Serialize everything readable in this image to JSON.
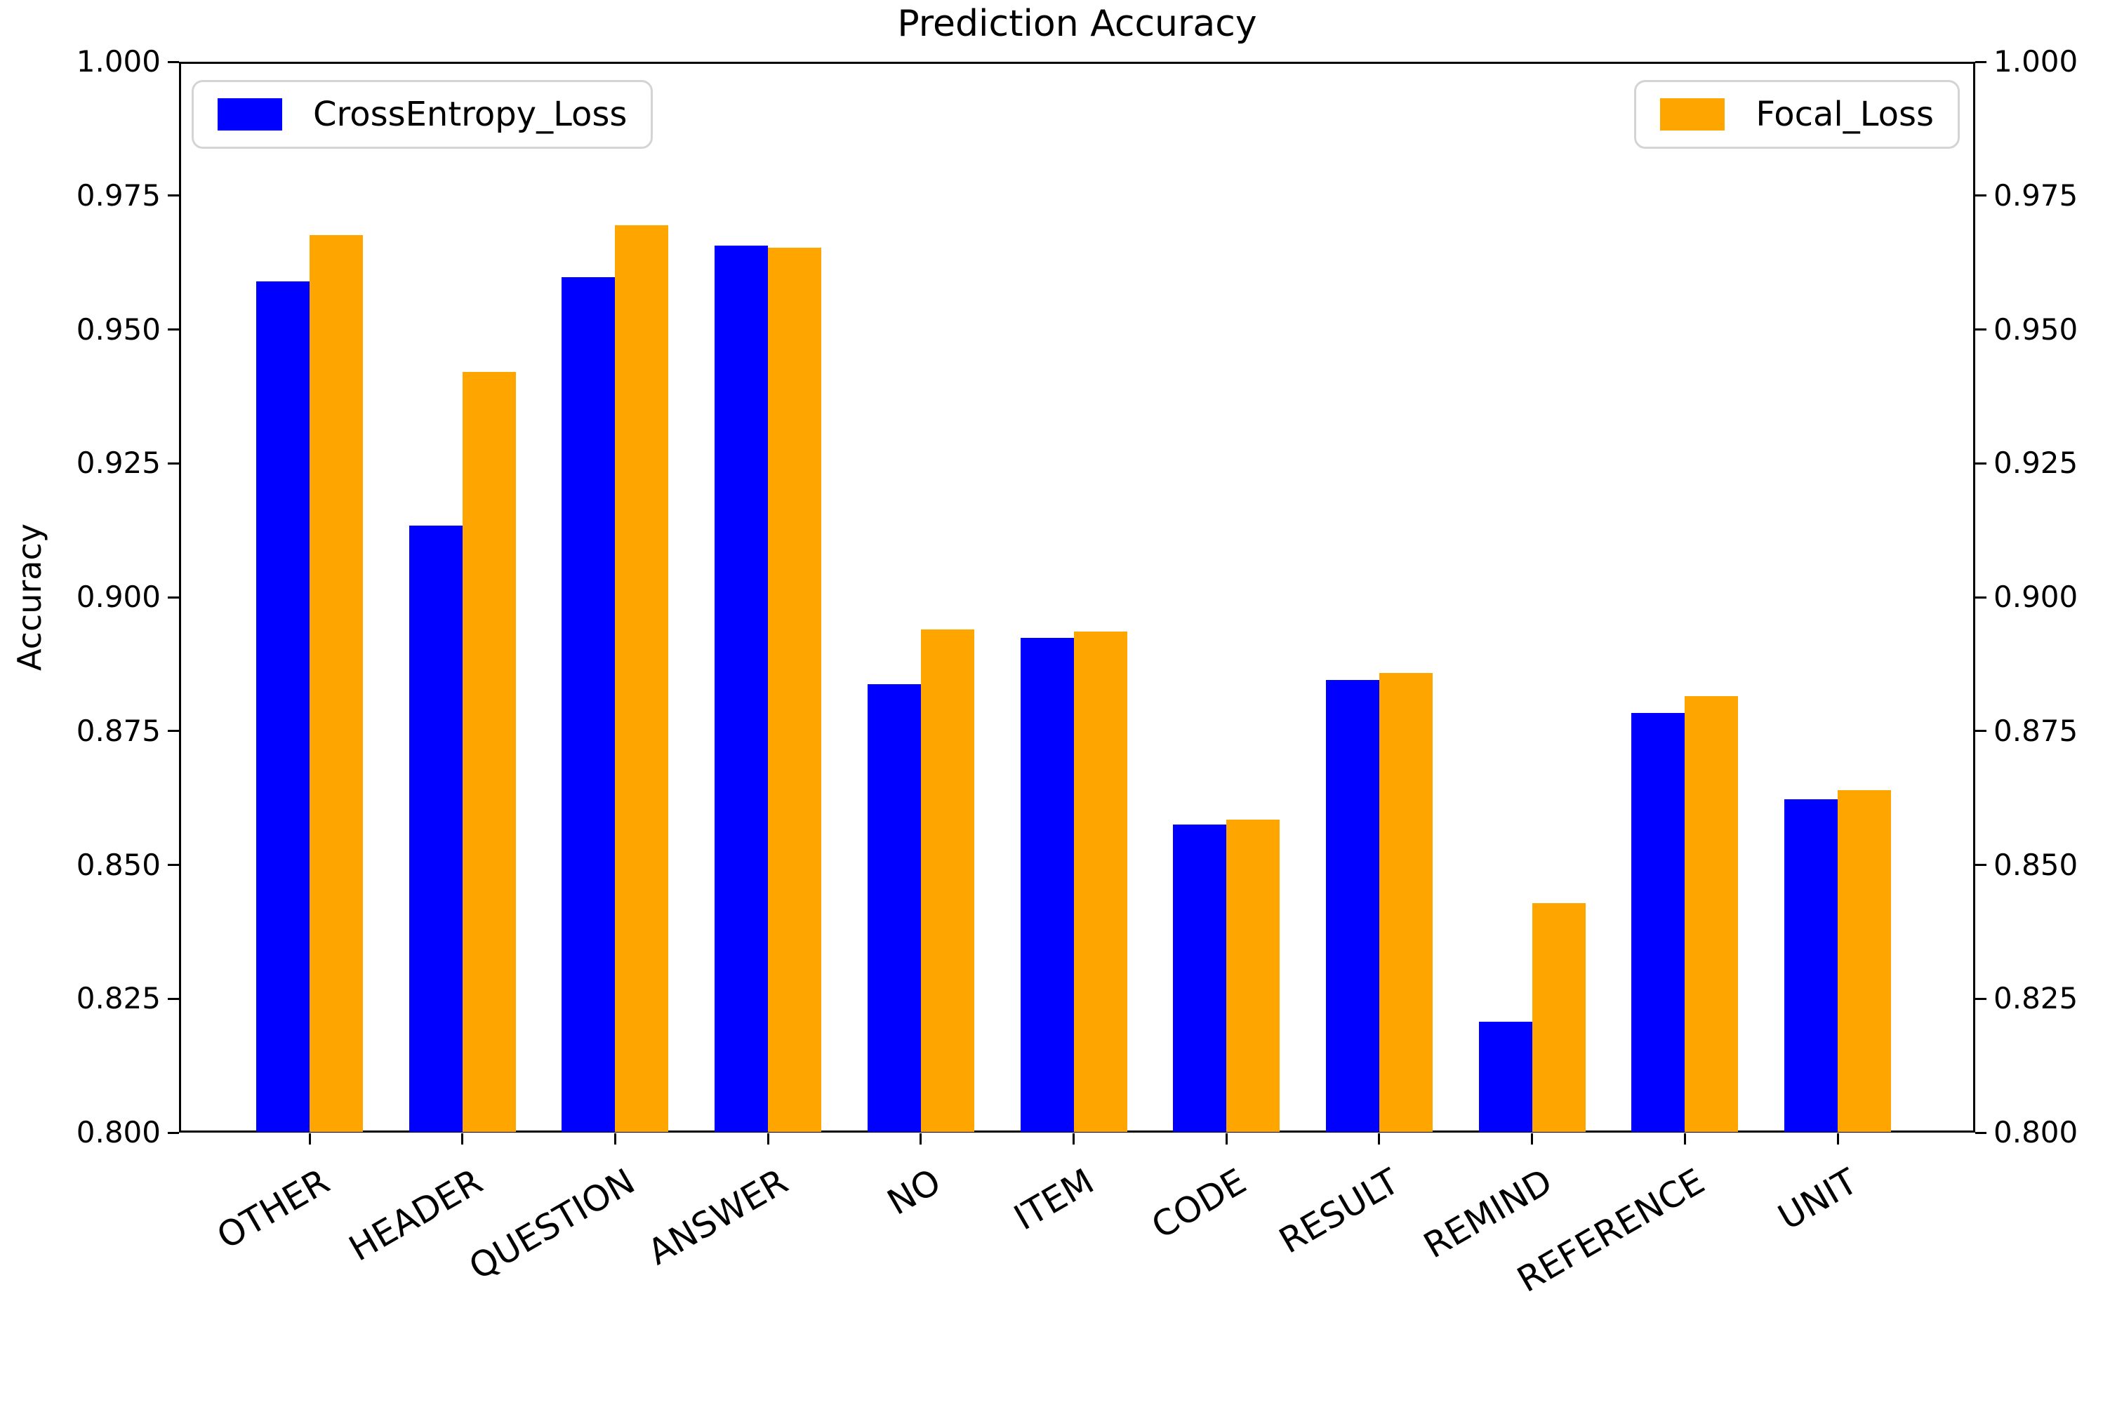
{
  "chart_data": {
    "type": "bar",
    "title": "Prediction Accuracy",
    "xlabel": "",
    "ylabel": "Accuracy",
    "categories": [
      "OTHER",
      "HEADER",
      "QUESTION",
      "ANSWER",
      "NO",
      "ITEM",
      "CODE",
      "RESULT",
      "REMIND",
      "REFERENCE",
      "UNIT"
    ],
    "series": [
      {
        "name": "CrossEntropy_Loss",
        "color": "#0000ff",
        "values": [
          0.959,
          0.9134,
          0.9597,
          0.9656,
          0.8838,
          0.8924,
          0.8576,
          0.8845,
          0.8207,
          0.8784,
          0.8622
        ]
      },
      {
        "name": "Focal_Loss",
        "color": "#ffa500",
        "values": [
          0.9676,
          0.9421,
          0.9694,
          0.9653,
          0.894,
          0.8936,
          0.8584,
          0.8858,
          0.8428,
          0.8815,
          0.864
        ]
      }
    ],
    "ylim": [
      0.8,
      1.0
    ],
    "yticks": [
      0.8,
      0.825,
      0.85,
      0.875,
      0.9,
      0.925,
      0.95,
      0.975,
      1.0
    ],
    "ytick_decimals": 3,
    "dual_y_axis": true,
    "grid": false,
    "xtick_rotation": 30,
    "legend_positions": [
      "upper left",
      "upper right"
    ],
    "bar_colors": {
      "CrossEntropy_Loss": "#0000ff",
      "Focal_Loss": "#ffa500"
    }
  }
}
